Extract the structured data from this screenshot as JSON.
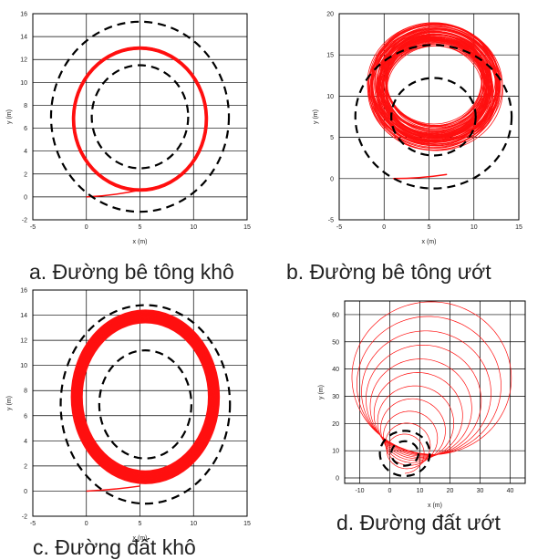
{
  "colors": {
    "trajectory": "#ff1010",
    "boundary": "#000000",
    "grid": "#000000"
  },
  "panels": [
    {
      "caption": "a. Đường bê tông khô"
    },
    {
      "caption": "b. Đường bê tông ướt"
    },
    {
      "caption": "c. Đường đất khô"
    },
    {
      "caption": "d. Đường đất ướt"
    }
  ],
  "chart_data": [
    {
      "type": "line",
      "xlabel": "x (m)",
      "ylabel": "y (m)",
      "xlim": [
        -5,
        15
      ],
      "ylim": [
        -2,
        16
      ],
      "xticks": [
        -5,
        0,
        5,
        10,
        15
      ],
      "yticks": [
        -2,
        0,
        2,
        4,
        6,
        8,
        10,
        12,
        14,
        16
      ],
      "grid": true,
      "boundaries": [
        {
          "name": "inner",
          "center": [
            5,
            7
          ],
          "radius": 4.5,
          "style": "dashed"
        },
        {
          "name": "outer",
          "center": [
            5,
            7
          ],
          "radius": 8.3,
          "style": "dashed"
        }
      ],
      "trajectory": {
        "start": [
          0,
          0
        ],
        "entry": [
          5,
          0.6
        ],
        "center": [
          5,
          6.8
        ],
        "radius_min": 6.1,
        "radius_max": 6.3
      }
    },
    {
      "type": "line",
      "xlabel": "x (m)",
      "ylabel": "y (m)",
      "xlim": [
        -5,
        15
      ],
      "ylim": [
        -5,
        20
      ],
      "xticks": [
        -5,
        0,
        5,
        10,
        15
      ],
      "yticks": [
        -5,
        0,
        5,
        10,
        15,
        20
      ],
      "grid": true,
      "boundaries": [
        {
          "name": "inner",
          "center": [
            5.5,
            7.5
          ],
          "radius": 4.7,
          "style": "dashed"
        },
        {
          "name": "outer",
          "center": [
            5.5,
            7.5
          ],
          "radius": 8.7,
          "style": "dashed"
        }
      ],
      "trajectory": {
        "start": [
          1,
          0
        ],
        "entry": [
          7,
          0.5
        ],
        "center_range": [
          [
            5.6,
            10.5
          ],
          [
            6.2,
            12.0
          ]
        ],
        "radius_min": 5.3,
        "radius_max": 7.4
      }
    },
    {
      "type": "line",
      "xlabel": "x (m)",
      "ylabel": "y (m)",
      "xlim": [
        -5,
        15
      ],
      "ylim": [
        -2,
        16
      ],
      "xticks": [
        -5,
        0,
        5,
        10,
        15
      ],
      "yticks": [
        -2,
        0,
        2,
        4,
        6,
        8,
        10,
        12,
        14,
        16
      ],
      "grid": true,
      "boundaries": [
        {
          "name": "inner",
          "center": [
            5.5,
            6.9
          ],
          "radius": 4.3,
          "style": "dashed"
        },
        {
          "name": "outer",
          "center": [
            5.5,
            6.9
          ],
          "radius": 7.9,
          "style": "dashed"
        }
      ],
      "trajectory": {
        "start": [
          0,
          0
        ],
        "entry": [
          5,
          0.4
        ],
        "center": [
          5.5,
          7.5
        ],
        "radius_min": 5.9,
        "radius_max": 6.9
      }
    },
    {
      "type": "line",
      "xlabel": "x (m)",
      "ylabel": "y (m)",
      "xlim": [
        -15,
        45
      ],
      "ylim": [
        -2,
        65
      ],
      "xticks": [
        -10,
        0,
        10,
        20,
        30,
        40
      ],
      "yticks": [
        0,
        10,
        20,
        30,
        40,
        50,
        60
      ],
      "grid": true,
      "boundaries": [
        {
          "name": "inner",
          "center": [
            5,
            9
          ],
          "radius": 4.5,
          "style": "dashed"
        },
        {
          "name": "outer",
          "center": [
            5,
            9
          ],
          "radius": 8.3,
          "style": "dashed"
        }
      ],
      "trajectory": {
        "start": [
          0,
          0
        ],
        "center_start": [
          5,
          8
        ],
        "radius_start": 6,
        "center_end": [
          15,
          38
        ],
        "radius_end": 28
      }
    }
  ]
}
